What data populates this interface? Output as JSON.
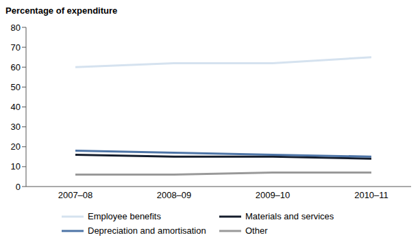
{
  "chart_data": {
    "type": "line",
    "y_label": "Percentage of expenditure",
    "categories": [
      "2007–08",
      "2008–09",
      "2009–10",
      "2010–11"
    ],
    "series": [
      {
        "name": "Employee benefits",
        "color": "#d5e2ef",
        "values": [
          60,
          62,
          62,
          65
        ]
      },
      {
        "name": "Materials and services",
        "color": "#141c2b",
        "values": [
          16,
          15,
          15,
          14
        ]
      },
      {
        "name": "Depreciation and amortisation",
        "color": "#4d74a6",
        "values": [
          18,
          17,
          16,
          15
        ]
      },
      {
        "name": "Other",
        "color": "#999999",
        "values": [
          6,
          6,
          7,
          7
        ]
      }
    ],
    "ylim": [
      0,
      80
    ],
    "yticks": [
      0,
      10,
      20,
      30,
      40,
      50,
      60,
      70,
      80
    ],
    "grid": false,
    "legend": "bottom"
  }
}
